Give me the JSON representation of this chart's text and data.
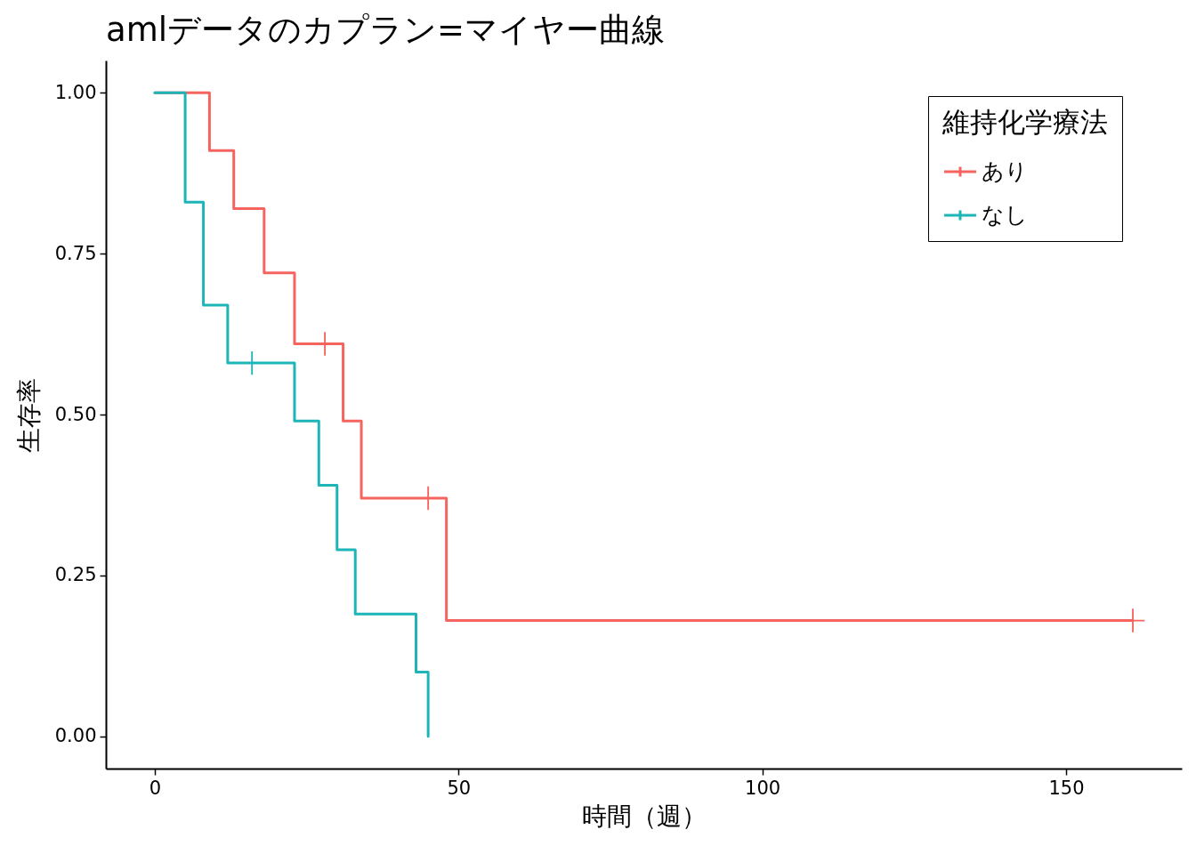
{
  "chart_data": {
    "type": "step",
    "title": "amlデータのカプラン=マイヤー曲線",
    "xlabel": "時間（週）",
    "ylabel": "生存率",
    "legend_title": "維持化学療法",
    "legend": "top right",
    "line_style": "solid",
    "xlim": [
      -8.05,
      169.05
    ],
    "xticks": [
      0,
      50,
      100,
      150
    ],
    "ylim": [
      -0.05,
      1.05
    ],
    "yticks": [
      {
        "value": 0,
        "label": "0.00"
      },
      {
        "value": 0.25,
        "label": "0.25"
      },
      {
        "value": 0.5,
        "label": "0.50"
      },
      {
        "value": 0.75,
        "label": "0.75"
      },
      {
        "value": 1,
        "label": "1.00"
      }
    ],
    "series": [
      {
        "name": "あり",
        "color": "#f5645f",
        "x": [
          0,
          9,
          13,
          18,
          23,
          31,
          34,
          48,
          161
        ],
        "values": [
          1,
          0.91,
          0.82,
          0.72,
          0.61,
          0.49,
          0.37,
          0.18,
          0.18
        ]
      },
      {
        "name": "なし",
        "color": "#1eb5b8",
        "x": [
          0,
          5,
          8,
          12,
          23,
          27,
          30,
          33,
          43,
          45
        ],
        "values": [
          1,
          0.83,
          0.67,
          0.58,
          0.49,
          0.39,
          0.29,
          0.19,
          0.1,
          0
        ]
      },
      {
        "type": "scatter",
        "marker": "cross",
        "color": "#f5645f",
        "x": [
          28,
          45,
          161
        ],
        "values": [
          0.61,
          0.37,
          0.18
        ]
      },
      {
        "type": "scatter",
        "marker": "cross",
        "color": "#1eb5b8",
        "x": [
          16
        ],
        "values": [
          0.58
        ]
      }
    ]
  }
}
